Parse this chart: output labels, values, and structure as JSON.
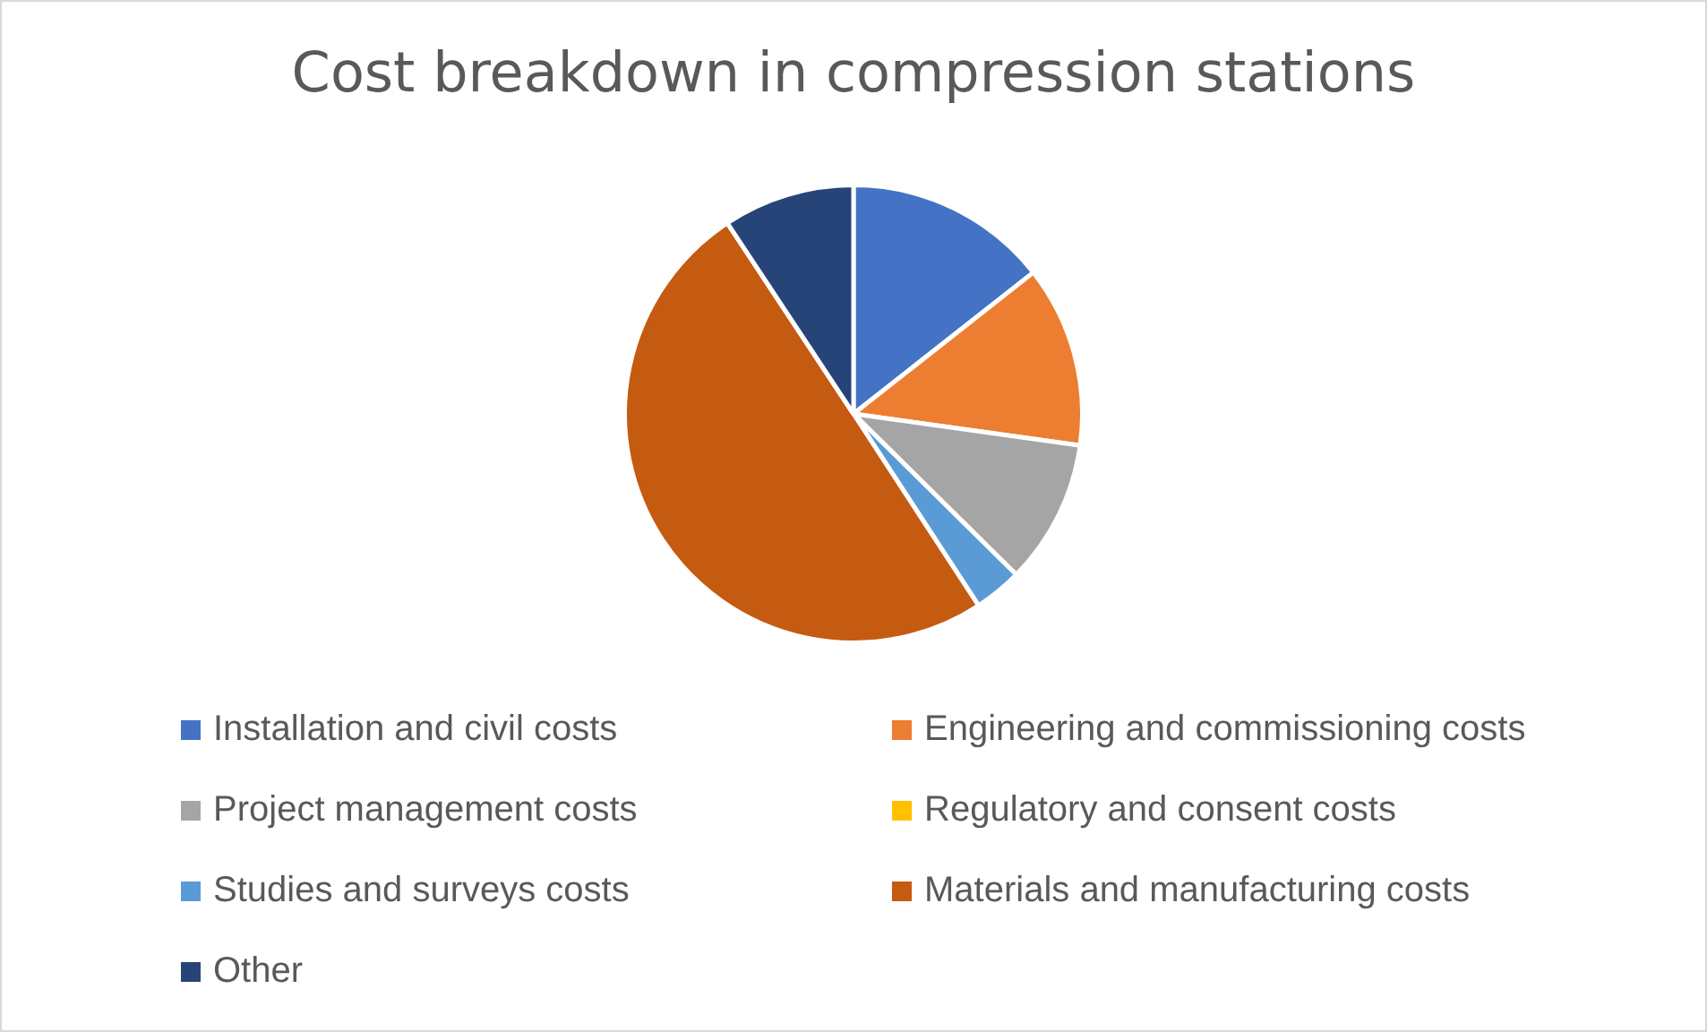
{
  "chart_data": {
    "type": "pie",
    "title": "Cost breakdown in compression stations",
    "categories": [
      "Installation and civil costs",
      "Engineering and commissioning costs",
      "Project management costs",
      "Regulatory and consent costs",
      "Studies and surveys costs",
      "Materials and manufacturing costs",
      "Other"
    ],
    "values": [
      14.4,
      12.8,
      10.2,
      0,
      3.4,
      49.9,
      9.3
    ],
    "colors": [
      "#4472c4",
      "#ed7d31",
      "#a5a5a5",
      "#ffc000",
      "#5b9bd5",
      "#c55a11",
      "#264478"
    ],
    "legend": "bottom"
  }
}
